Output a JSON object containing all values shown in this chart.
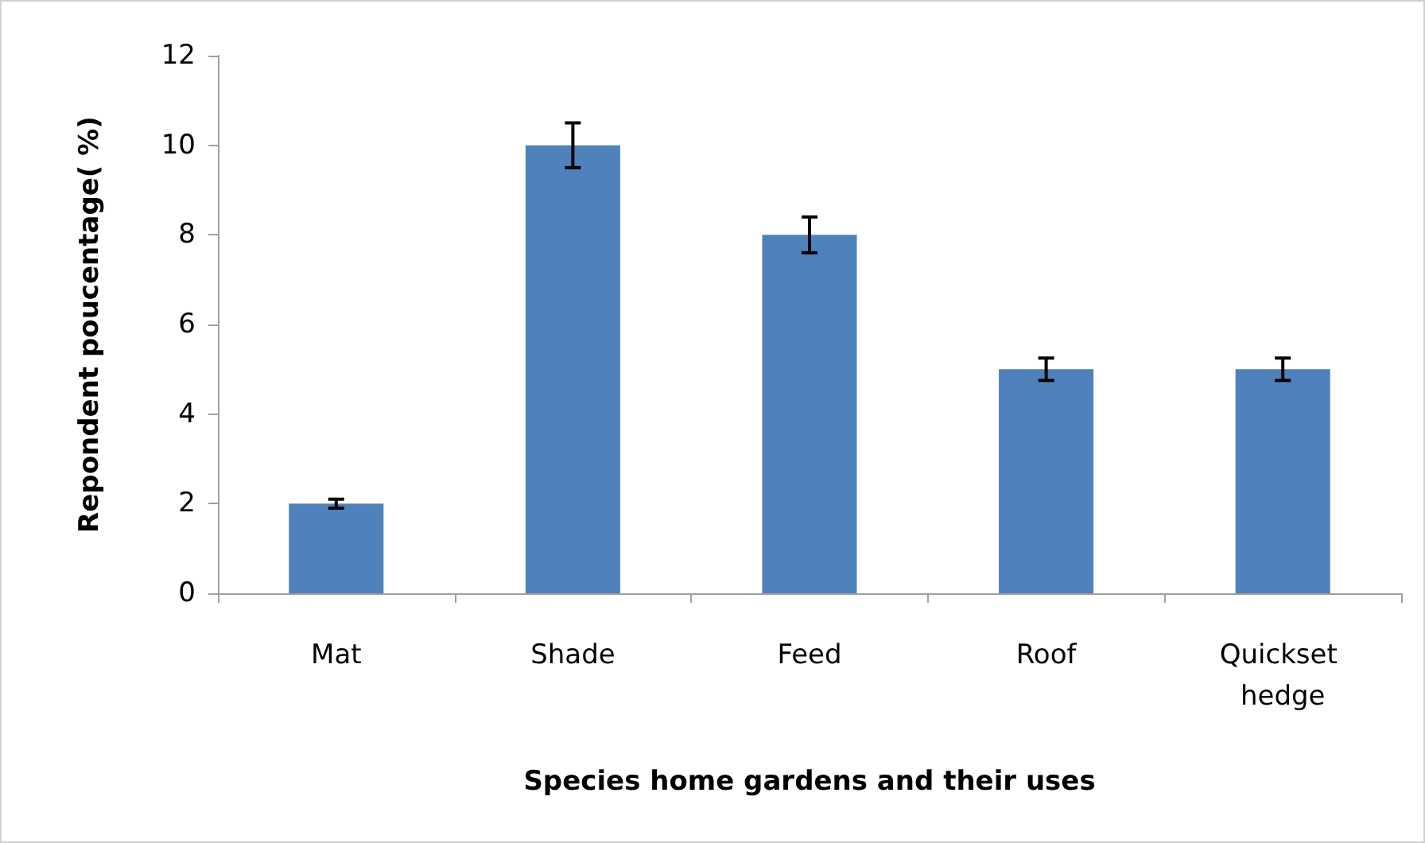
{
  "chart_data": {
    "type": "bar",
    "xlabel": "Species home gardens and their uses",
    "ylabel": "Repondent poucentage( %)",
    "categories": [
      "Mat",
      "Shade",
      "Feed",
      "Roof",
      "Quickset hedge"
    ],
    "values": [
      2,
      10,
      8,
      5,
      5
    ],
    "errors": [
      0.1,
      0.5,
      0.4,
      0.25,
      0.25
    ],
    "color": "#4f81bd",
    "ylim": [
      0,
      12
    ],
    "yticks": [
      0,
      2,
      4,
      6,
      8,
      10,
      12
    ],
    "grid": false
  }
}
